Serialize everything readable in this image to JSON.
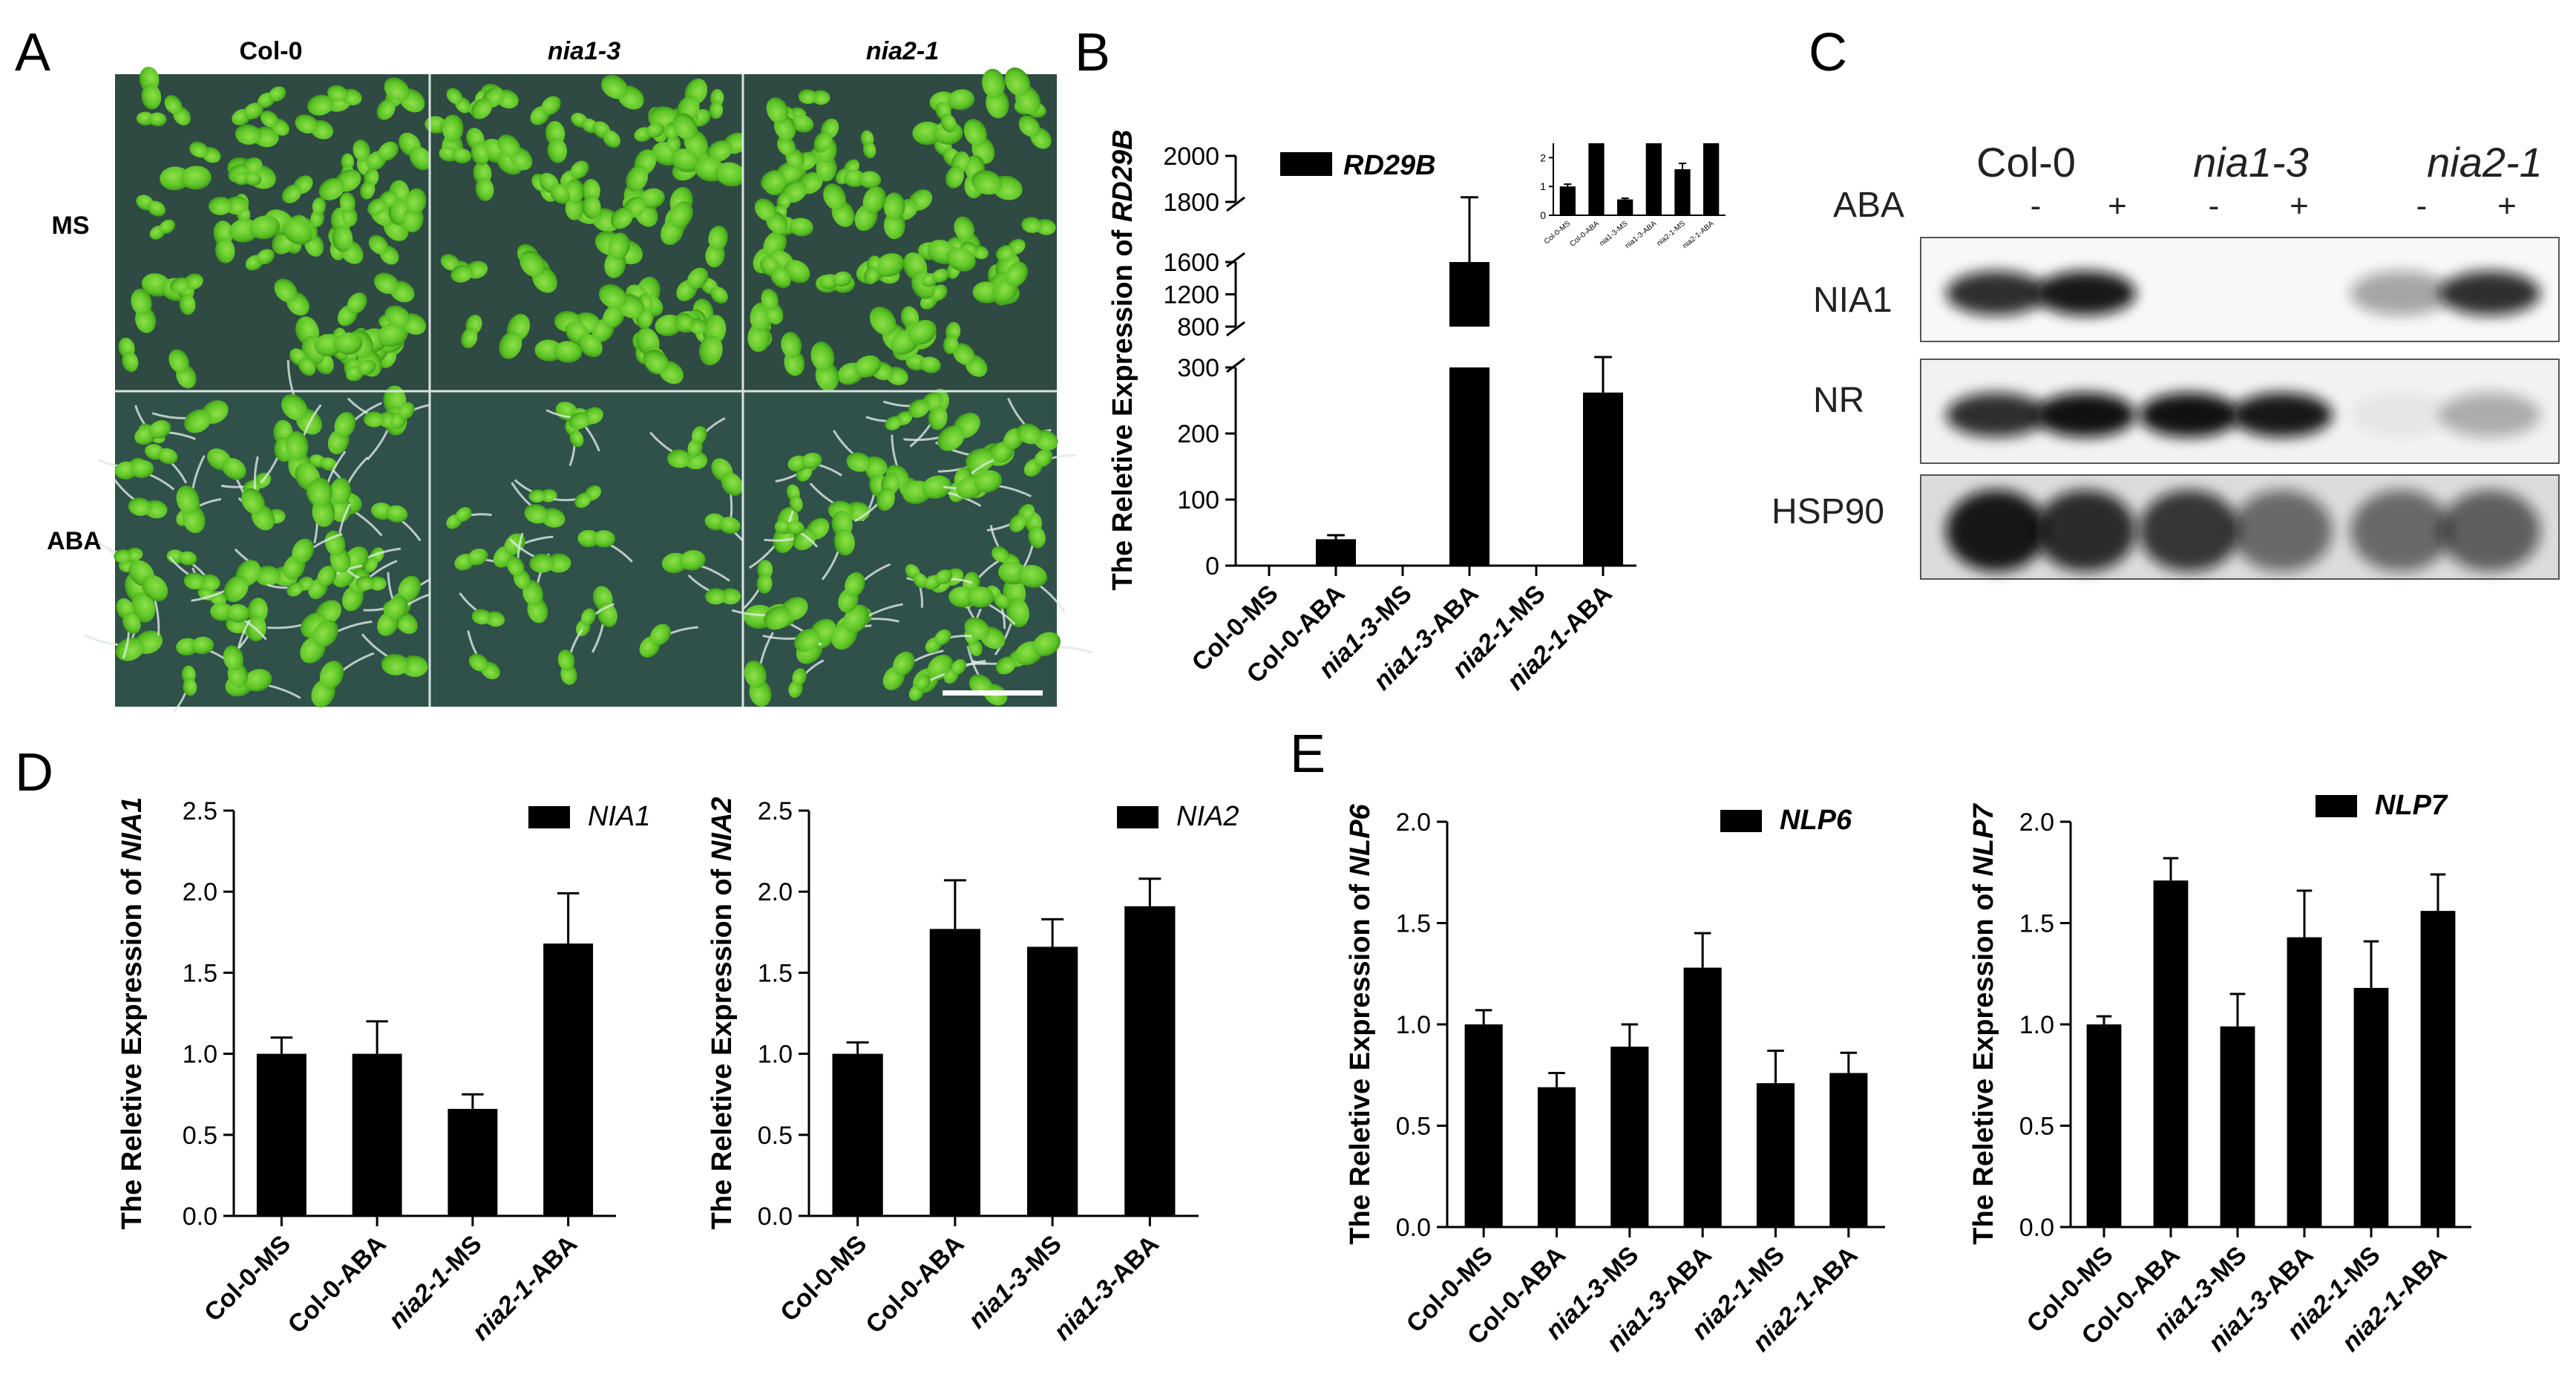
{
  "panel_letters": [
    "A",
    "B",
    "C",
    "D",
    "E"
  ],
  "panel_a": {
    "columns": [
      "Col-0",
      "nia1-3",
      "nia2-1"
    ],
    "rows": [
      "MS",
      "ABA"
    ]
  },
  "panel_c": {
    "genotypes": [
      "Col-0",
      "nia1-3",
      "nia2-1"
    ],
    "treatment_label": "ABA",
    "treatment_marks": [
      "-",
      "+",
      "-",
      "+",
      "-",
      "+"
    ],
    "blots": [
      "NIA1",
      "NR",
      "HSP90"
    ],
    "band_intensity": {
      "NIA1": [
        0.85,
        0.95,
        0.0,
        0.0,
        0.35,
        0.85
      ],
      "NR": [
        0.85,
        0.98,
        0.98,
        0.95,
        0.05,
        0.3
      ],
      "HSP90": [
        0.95,
        0.85,
        0.8,
        0.55,
        0.55,
        0.6
      ]
    }
  },
  "chart_data": [
    {
      "id": "B",
      "type": "bar",
      "title": "",
      "ylabel_prefix": "The Reletive Expression of ",
      "ylabel_gene": "RD29B",
      "legend": "RD29B",
      "categories": [
        "Col-0-MS",
        "Col-0-ABA",
        "nia1-3-MS",
        "nia1-3-ABA",
        "nia2-1-MS",
        "nia2-1-ABA"
      ],
      "values": [
        1,
        40,
        0.5,
        1600,
        1.6,
        262
      ],
      "errors": [
        0.1,
        6,
        0.05,
        220,
        0.15,
        48
      ],
      "yticks": [
        "0",
        "100",
        "200",
        "300",
        "800",
        "1200",
        "1600",
        "1800",
        "2000"
      ],
      "broken_axis": true,
      "inset": {
        "categories": [
          "Col-0-MS",
          "Col-0-ABA",
          "nia1-3-MS",
          "nia1-3-ABA",
          "nia2-1-MS",
          "nia2-1-ABA"
        ],
        "values": [
          1.0,
          2.5,
          0.55,
          2.5,
          1.6,
          2.5
        ],
        "errors": [
          0.08,
          0,
          0.04,
          0,
          0.2,
          0
        ],
        "ylim": [
          0,
          2.5
        ],
        "yticks": [
          "0",
          "1",
          "2"
        ]
      }
    },
    {
      "id": "D1",
      "type": "bar",
      "ylabel_prefix": "The Reletive Expression of ",
      "ylabel_gene": "NIA1",
      "legend": "NIA1",
      "categories": [
        "Col-0-MS",
        "Col-0-ABA",
        "nia2-1-MS",
        "nia2-1-ABA"
      ],
      "values": [
        1.0,
        1.0,
        0.66,
        1.68
      ],
      "errors": [
        0.1,
        0.2,
        0.09,
        0.31
      ],
      "ylim": [
        0,
        2.5
      ],
      "yticks": [
        "0.0",
        "0.5",
        "1.0",
        "1.5",
        "2.0",
        "2.5"
      ]
    },
    {
      "id": "D2",
      "type": "bar",
      "ylabel_prefix": "The Reletive Expression of ",
      "ylabel_gene": "NIA2",
      "legend": "NIA2",
      "categories": [
        "Col-0-MS",
        "Col-0-ABA",
        "nia1-3-MS",
        "nia1-3-ABA"
      ],
      "values": [
        1.0,
        1.77,
        1.66,
        1.91
      ],
      "errors": [
        0.07,
        0.3,
        0.17,
        0.17
      ],
      "ylim": [
        0,
        2.5
      ],
      "yticks": [
        "0.0",
        "0.5",
        "1.0",
        "1.5",
        "2.0",
        "2.5"
      ]
    },
    {
      "id": "E1",
      "type": "bar",
      "ylabel_prefix": "The Reletive Expression of ",
      "ylabel_gene": "NLP6",
      "legend": "NLP6",
      "categories": [
        "Col-0-MS",
        "Col-0-ABA",
        "nia1-3-MS",
        "nia1-3-ABA",
        "nia2-1-MS",
        "nia2-1-ABA"
      ],
      "values": [
        1.0,
        0.69,
        0.89,
        1.28,
        0.71,
        0.76
      ],
      "errors": [
        0.07,
        0.07,
        0.11,
        0.17,
        0.16,
        0.1
      ],
      "ylim": [
        0,
        2.0
      ],
      "yticks": [
        "0.0",
        "0.5",
        "1.0",
        "1.5",
        "2.0"
      ]
    },
    {
      "id": "E2",
      "type": "bar",
      "ylabel_prefix": "The Reletive Expression of ",
      "ylabel_gene": "NLP7",
      "legend": "NLP7",
      "categories": [
        "Col-0-MS",
        "Col-0-ABA",
        "nia1-3-MS",
        "nia1-3-ABA",
        "nia2-1-MS",
        "nia2-1-ABA"
      ],
      "values": [
        1.0,
        1.71,
        0.99,
        1.43,
        1.18,
        1.56
      ],
      "errors": [
        0.04,
        0.11,
        0.16,
        0.23,
        0.23,
        0.18
      ],
      "ylim": [
        0,
        2.0
      ],
      "yticks": [
        "0.0",
        "0.5",
        "1.0",
        "1.5",
        "2.0"
      ]
    }
  ]
}
